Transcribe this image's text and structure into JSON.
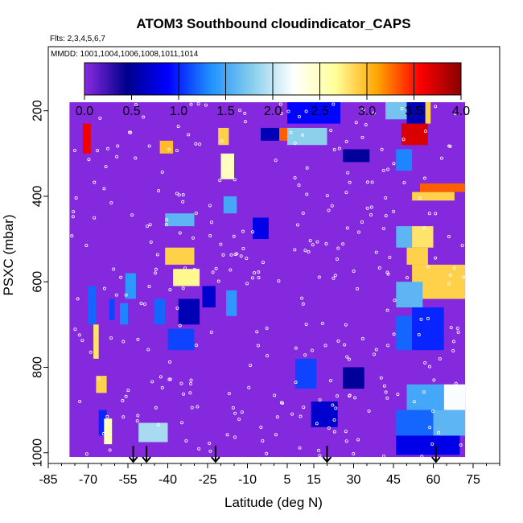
{
  "chart_data": {
    "type": "heatmap",
    "title": "ATOM3 Southbound cloudindicator_CAPS",
    "flights_note": "Flts: 2,3,4,5,6,7",
    "dates_note": "MMDD: 1001,1004,1006,1008,1011,1014",
    "xlabel": "Latitude (deg N)",
    "ylabel": "PSXC (mbar)",
    "xlim": [
      -85,
      85
    ],
    "ylim": [
      1025,
      50
    ],
    "x_ticks": [
      -85,
      -70,
      -55,
      -40,
      -25,
      -10,
      5,
      15,
      30,
      45,
      60,
      75
    ],
    "x_tick_labels": [
      "-85",
      "-70",
      "-55",
      "-40",
      "-25",
      "-10",
      "5",
      "15",
      "30",
      "45",
      "60",
      "75"
    ],
    "y_ticks": [
      200,
      400,
      600,
      800,
      1000
    ],
    "y_tick_labels": [
      "200",
      "400",
      "600",
      "800",
      "1000"
    ],
    "colorbar": {
      "min": 0.0,
      "max": 4.0,
      "tick_values": [
        0.0,
        0.5,
        1.0,
        1.5,
        2.0,
        2.5,
        3.0,
        3.5,
        4.0
      ],
      "tick_labels": [
        "0.0",
        "0.5",
        "1.0",
        "1.5",
        "2.0",
        "2.5",
        "3.0",
        "3.5",
        "4.0"
      ],
      "stops": [
        "#8a2be2",
        "#00008b",
        "#0000ff",
        "#1e90ff",
        "#87ceeb",
        "#ffffff",
        "#ffff99",
        "#ffa500",
        "#ff0000",
        "#8b0000"
      ]
    },
    "profile_markers_lat": [
      -53,
      -48,
      -22,
      20,
      61
    ],
    "data_extent": {
      "lat_range": [
        -77,
        72
      ],
      "pressure_range": [
        180,
        1010
      ]
    },
    "cells": [
      {
        "lat": [
          -77,
          72
        ],
        "p": [
          180,
          1010
        ],
        "v": 0.02
      },
      {
        "lat": [
          -72,
          -69
        ],
        "p": [
          230,
          300
        ],
        "v": 3.6
      },
      {
        "lat": [
          -70,
          -67
        ],
        "p": [
          610,
          700
        ],
        "v": 1.2
      },
      {
        "lat": [
          -68,
          -66
        ],
        "p": [
          700,
          780
        ],
        "v": 2.8
      },
      {
        "lat": [
          -67,
          -63
        ],
        "p": [
          820,
          860
        ],
        "v": 2.9
      },
      {
        "lat": [
          -66,
          -63
        ],
        "p": [
          900,
          960
        ],
        "v": 1.0
      },
      {
        "lat": [
          -64,
          -61
        ],
        "p": [
          920,
          980
        ],
        "v": 2.5
      },
      {
        "lat": [
          -62,
          -60
        ],
        "p": [
          640,
          690
        ],
        "v": 1.1
      },
      {
        "lat": [
          -58,
          -55
        ],
        "p": [
          650,
          700
        ],
        "v": 1.3
      },
      {
        "lat": [
          -56,
          -52
        ],
        "p": [
          580,
          640
        ],
        "v": 1.4
      },
      {
        "lat": [
          -51,
          -40
        ],
        "p": [
          930,
          975
        ],
        "v": 1.9
      },
      {
        "lat": [
          -45,
          -41
        ],
        "p": [
          640,
          700
        ],
        "v": 1.2
      },
      {
        "lat": [
          -43,
          -38
        ],
        "p": [
          270,
          300
        ],
        "v": 3.0
      },
      {
        "lat": [
          -41,
          -30
        ],
        "p": [
          520,
          560
        ],
        "v": 2.9
      },
      {
        "lat": [
          -41,
          -30
        ],
        "p": [
          440,
          470
        ],
        "v": 1.6
      },
      {
        "lat": [
          -38,
          -28
        ],
        "p": [
          570,
          610
        ],
        "v": 2.7
      },
      {
        "lat": [
          -36,
          -28
        ],
        "p": [
          640,
          700
        ],
        "v": 0.6
      },
      {
        "lat": [
          -40,
          -30
        ],
        "p": [
          710,
          760
        ],
        "v": 1.1
      },
      {
        "lat": [
          -27,
          -22
        ],
        "p": [
          610,
          660
        ],
        "v": 0.7
      },
      {
        "lat": [
          -21,
          -17
        ],
        "p": [
          240,
          280
        ],
        "v": 2.9
      },
      {
        "lat": [
          -20,
          -15
        ],
        "p": [
          300,
          360
        ],
        "v": 2.5
      },
      {
        "lat": [
          -19,
          -14
        ],
        "p": [
          400,
          440
        ],
        "v": 1.5
      },
      {
        "lat": [
          -18,
          -14
        ],
        "p": [
          620,
          680
        ],
        "v": 1.4
      },
      {
        "lat": [
          -8,
          -2
        ],
        "p": [
          450,
          500
        ],
        "v": 0.8
      },
      {
        "lat": [
          -5,
          2
        ],
        "p": [
          240,
          270
        ],
        "v": 0.6
      },
      {
        "lat": [
          2,
          7
        ],
        "p": [
          240,
          270
        ],
        "v": 3.3
      },
      {
        "lat": [
          5,
          25
        ],
        "p": [
          180,
          230
        ],
        "v": 0.9
      },
      {
        "lat": [
          5,
          20
        ],
        "p": [
          240,
          280
        ],
        "v": 1.8
      },
      {
        "lat": [
          8,
          16
        ],
        "p": [
          780,
          850
        ],
        "v": 1.1
      },
      {
        "lat": [
          14,
          24
        ],
        "p": [
          880,
          940
        ],
        "v": 0.7
      },
      {
        "lat": [
          26,
          36
        ],
        "p": [
          290,
          320
        ],
        "v": 0.5
      },
      {
        "lat": [
          26,
          34
        ],
        "p": [
          800,
          850
        ],
        "v": 0.5
      },
      {
        "lat": [
          42,
          50
        ],
        "p": [
          180,
          220
        ],
        "v": 1.7
      },
      {
        "lat": [
          50,
          58
        ],
        "p": [
          180,
          230
        ],
        "v": 0.6
      },
      {
        "lat": [
          57,
          59
        ],
        "p": [
          180,
          230
        ],
        "v": 2.9
      },
      {
        "lat": [
          48,
          58
        ],
        "p": [
          230,
          280
        ],
        "v": 3.7
      },
      {
        "lat": [
          46,
          52
        ],
        "p": [
          290,
          340
        ],
        "v": 1.3
      },
      {
        "lat": [
          52,
          68
        ],
        "p": [
          390,
          410
        ],
        "v": 2.9
      },
      {
        "lat": [
          55,
          72
        ],
        "p": [
          370,
          390
        ],
        "v": 3.3
      },
      {
        "lat": [
          46,
          52
        ],
        "p": [
          470,
          520
        ],
        "v": 1.6
      },
      {
        "lat": [
          52,
          60
        ],
        "p": [
          470,
          520
        ],
        "v": 2.8
      },
      {
        "lat": [
          50,
          58
        ],
        "p": [
          520,
          560
        ],
        "v": 2.9
      },
      {
        "lat": [
          52,
          72
        ],
        "p": [
          560,
          640
        ],
        "v": 2.9
      },
      {
        "lat": [
          46,
          56
        ],
        "p": [
          600,
          660
        ],
        "v": 1.6
      },
      {
        "lat": [
          46,
          52
        ],
        "p": [
          680,
          760
        ],
        "v": 1.2
      },
      {
        "lat": [
          52,
          64
        ],
        "p": [
          660,
          760
        ],
        "v": 1.0
      },
      {
        "lat": [
          64,
          72
        ],
        "p": [
          840,
          900
        ],
        "v": 2.2
      },
      {
        "lat": [
          50,
          64
        ],
        "p": [
          840,
          900
        ],
        "v": 1.5
      },
      {
        "lat": [
          46,
          60
        ],
        "p": [
          900,
          960
        ],
        "v": 1.2
      },
      {
        "lat": [
          60,
          72
        ],
        "p": [
          900,
          960
        ],
        "v": 1.6
      },
      {
        "lat": [
          46,
          70
        ],
        "p": [
          960,
          1005
        ],
        "v": 0.8
      }
    ]
  }
}
